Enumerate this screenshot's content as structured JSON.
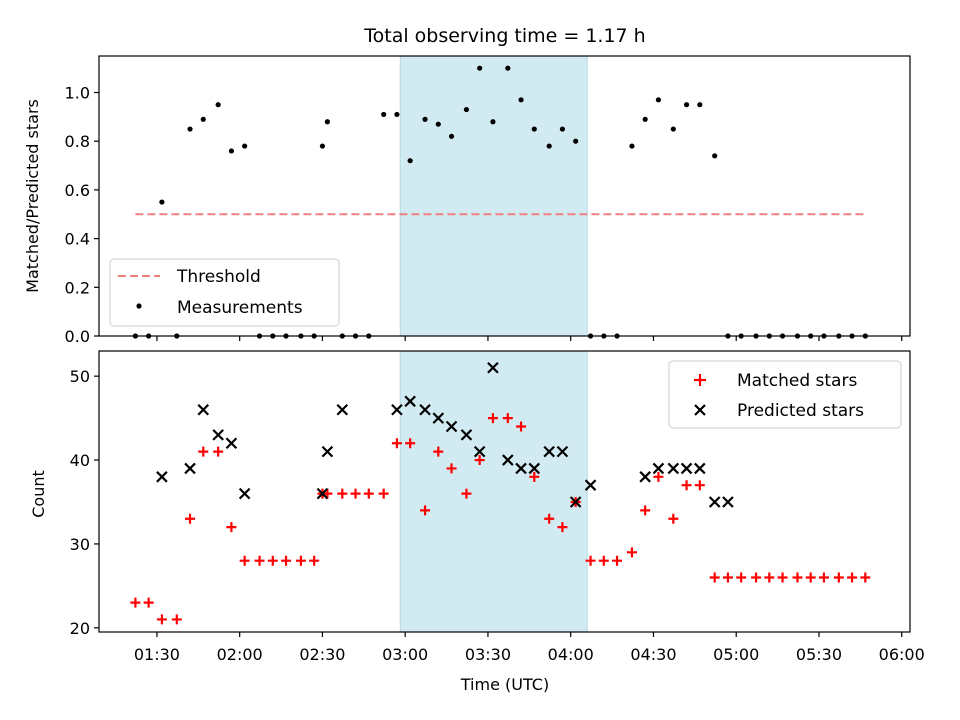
{
  "chart_data": {
    "type": "scatter",
    "title": "Total observing time = 1.17 h",
    "xlabel": "Time (UTC)",
    "x_unit": "minutes since 00:00 UTC",
    "xlim": [
      1.15,
      6.05
    ],
    "x_ticks": [
      "01:30",
      "02:00",
      "02:30",
      "03:00",
      "03:30",
      "04:00",
      "04:30",
      "05:00",
      "05:30",
      "06:00"
    ],
    "x_tick_hours": [
      1.5,
      2.0,
      2.5,
      3.0,
      3.5,
      4.0,
      4.5,
      5.0,
      5.5,
      6.0
    ],
    "highlight_span": {
      "from": 2.97,
      "to": 4.1,
      "color": "#add8e6"
    },
    "panels": [
      {
        "name": "ratio-panel",
        "ylabel": "Matched/Predicted stars",
        "ylim": [
          0,
          1.15
        ],
        "y_ticks": [
          "0.0",
          "0.2",
          "0.4",
          "0.6",
          "0.8",
          "1.0"
        ],
        "y_tick_values": [
          0,
          0.2,
          0.4,
          0.6,
          0.8,
          1.0
        ],
        "threshold": {
          "name": "Threshold",
          "y": 0.5,
          "x_from": 1.37,
          "x_to": 5.78,
          "color": "#f08080"
        },
        "legend": {
          "position": "lower-left",
          "entries": [
            "Threshold",
            "Measurements"
          ]
        },
        "series": [
          {
            "name": "Measurements",
            "marker": "dot",
            "color": "#000000",
            "x": [
              1.37,
              1.45,
              1.53,
              1.62,
              1.7,
              1.78,
              1.87,
              1.95,
              2.03,
              2.12,
              2.2,
              2.28,
              2.37,
              2.45,
              2.5,
              2.53,
              2.62,
              2.7,
              2.78,
              2.87,
              2.95,
              3.03,
              3.12,
              3.2,
              3.28,
              3.37,
              3.45,
              3.53,
              3.62,
              3.7,
              3.78,
              3.87,
              3.95,
              4.03,
              4.12,
              4.2,
              4.28,
              4.37,
              4.45,
              4.53,
              4.62,
              4.7,
              4.78,
              4.87,
              4.95,
              5.03,
              5.12,
              5.2,
              5.28,
              5.37,
              5.45,
              5.53,
              5.62,
              5.7,
              5.78
            ],
            "y": [
              0,
              0,
              0.55,
              0,
              0.85,
              0.89,
              0.95,
              0.76,
              0.78,
              0,
              0,
              0,
              0,
              0,
              0.78,
              0.88,
              0,
              0,
              0,
              0.91,
              0.91,
              0.72,
              0.89,
              0.87,
              0.82,
              0.93,
              1.1,
              0.88,
              1.1,
              0.97,
              0.85,
              0.78,
              0.85,
              0.8,
              0,
              0,
              0,
              0.78,
              0.89,
              0.97,
              0.85,
              0.95,
              0.95,
              0.74,
              0,
              0,
              0,
              0,
              0,
              0,
              0,
              0,
              0,
              0,
              0
            ]
          }
        ]
      },
      {
        "name": "count-panel",
        "ylabel": "Count",
        "ylim": [
          19.5,
          53
        ],
        "y_ticks": [
          "20",
          "30",
          "40",
          "50"
        ],
        "y_tick_values": [
          20,
          30,
          40,
          50
        ],
        "legend": {
          "position": "upper-right",
          "entries": [
            "Matched stars",
            "Predicted stars"
          ]
        },
        "series": [
          {
            "name": "Matched stars",
            "marker": "plus",
            "color": "#ff0000",
            "x": [
              1.37,
              1.45,
              1.53,
              1.62,
              1.7,
              1.78,
              1.87,
              1.95,
              2.03,
              2.12,
              2.2,
              2.28,
              2.37,
              2.45,
              2.5,
              2.53,
              2.62,
              2.7,
              2.78,
              2.87,
              2.95,
              3.03,
              3.12,
              3.2,
              3.28,
              3.37,
              3.45,
              3.53,
              3.62,
              3.7,
              3.78,
              3.87,
              3.95,
              4.03,
              4.12,
              4.2,
              4.28,
              4.37,
              4.45,
              4.53,
              4.62,
              4.7,
              4.78,
              4.87,
              4.95,
              5.03,
              5.12,
              5.2,
              5.28,
              5.37,
              5.45,
              5.53,
              5.62,
              5.7,
              5.78
            ],
            "y": [
              23,
              23,
              21,
              21,
              33,
              41,
              41,
              32,
              28,
              28,
              28,
              28,
              28,
              28,
              36,
              36,
              36,
              36,
              36,
              36,
              42,
              42,
              34,
              41,
              39,
              36,
              40,
              45,
              45,
              44,
              38,
              33,
              32,
              35,
              28,
              28,
              28,
              29,
              34,
              38,
              33,
              37,
              37,
              26,
              26,
              26,
              26,
              26,
              26,
              26,
              26,
              26,
              26,
              26,
              26
            ]
          },
          {
            "name": "Predicted stars",
            "marker": "x",
            "color": "#000000",
            "x": [
              1.53,
              1.7,
              1.78,
              1.87,
              1.95,
              2.03,
              2.5,
              2.53,
              2.62,
              2.95,
              3.03,
              3.12,
              3.2,
              3.28,
              3.37,
              3.45,
              3.53,
              3.62,
              3.7,
              3.78,
              3.87,
              3.95,
              4.03,
              4.12,
              4.45,
              4.53,
              4.62,
              4.7,
              4.78,
              4.87,
              4.95
            ],
            "y": [
              38,
              39,
              46,
              43,
              42,
              36,
              36,
              41,
              46,
              46,
              47,
              46,
              45,
              44,
              43,
              41,
              51,
              40,
              39,
              39,
              41,
              41,
              35,
              37,
              38,
              39,
              39,
              39,
              39,
              35,
              35
            ]
          }
        ]
      }
    ]
  }
}
